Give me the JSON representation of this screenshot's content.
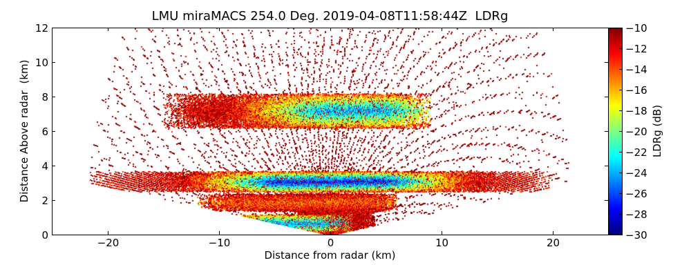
{
  "chart_data": {
    "type": "heatmap",
    "subtype": "RHI radar scan",
    "title": "LMU miraMACS 254.0 Deg. 2019-04-08T11:58:44Z  LDRg",
    "xlabel": "Distance from radar (km)",
    "ylabel": "Distance Above radar  (km)",
    "colorbar_label": "LDRg (dB)",
    "xlim": [
      -25,
      25
    ],
    "ylim": [
      0,
      12
    ],
    "clim": [
      -30,
      -10
    ],
    "colormap": "jet",
    "grid": false,
    "x_ticks": [
      -20,
      -10,
      0,
      10,
      20
    ],
    "x_tick_labels": [
      "−20",
      "−10",
      "0",
      "10",
      "20"
    ],
    "y_ticks": [
      0,
      2,
      4,
      6,
      8,
      10,
      12
    ],
    "y_tick_labels": [
      "0",
      "2",
      "4",
      "6",
      "8",
      "10",
      "12"
    ],
    "colorbar_ticks": [
      -10,
      -12,
      -14,
      -16,
      -18,
      -20,
      -22,
      -24,
      -26,
      -28,
      -30
    ],
    "colorbar_tick_labels": [
      "−10",
      "−12",
      "−14",
      "−16",
      "−18",
      "−20",
      "−22",
      "−24",
      "−26",
      "−28",
      "−30"
    ],
    "scan": {
      "max_range_km": 22,
      "elevation_start_deg": 8,
      "elevation_end_deg": 172,
      "background_speckle_ldr_db": -10
    },
    "features": [
      {
        "name": "lower cloud layer",
        "x_range_km": [
          -22,
          20
        ],
        "z_base_km": 2.5,
        "z_top_km": 3.7,
        "core_ldr_db": -27,
        "edge_ldr_db": -12,
        "core_x_range_km": [
          -5,
          5
        ]
      },
      {
        "name": "upper cloud layer",
        "x_range_km": [
          -15,
          9
        ],
        "z_base_km": 6.2,
        "z_top_km": 8.2,
        "core_ldr_db": -24,
        "edge_ldr_db": -12,
        "core_x_range_km": [
          -1,
          5
        ]
      },
      {
        "name": "near-ground clutter",
        "x_range_km": [
          -3,
          4
        ],
        "z_base_km": 0,
        "z_top_km": 2,
        "core_ldr_db": -10,
        "edge_ldr_db": -13
      },
      {
        "name": "low band",
        "x_range_km": [
          -10,
          2
        ],
        "z_base_km": 0.2,
        "z_top_km": 1.2,
        "core_ldr_db": -24,
        "edge_ldr_db": -14,
        "core_x_range_km": [
          -6,
          0
        ]
      },
      {
        "name": "mid band",
        "x_range_km": [
          -12,
          6
        ],
        "z_base_km": 1.4,
        "z_top_km": 2.4,
        "core_ldr_db": -17,
        "edge_ldr_db": -11
      }
    ]
  }
}
